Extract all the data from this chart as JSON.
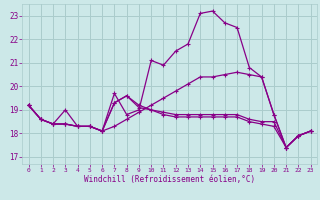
{
  "background_color": "#cce8e8",
  "grid_color": "#aacccc",
  "line_color": "#880088",
  "xlabel": "Windchill (Refroidissement éolien,°C)",
  "xlim": [
    -0.5,
    23.5
  ],
  "ylim": [
    16.7,
    23.5
  ],
  "yticks": [
    17,
    18,
    19,
    20,
    21,
    22,
    23
  ],
  "xticks": [
    0,
    1,
    2,
    3,
    4,
    5,
    6,
    7,
    8,
    9,
    10,
    11,
    12,
    13,
    14,
    15,
    16,
    17,
    18,
    19,
    20,
    21,
    22,
    23
  ],
  "series": [
    [
      19.2,
      18.6,
      18.4,
      19.0,
      18.3,
      18.3,
      18.1,
      19.7,
      18.8,
      19.0,
      21.1,
      20.9,
      21.5,
      21.8,
      23.1,
      23.2,
      22.7,
      22.5,
      20.8,
      20.4,
      18.8,
      17.4,
      17.9,
      18.1
    ],
    [
      19.2,
      18.6,
      18.4,
      18.4,
      18.3,
      18.3,
      18.1,
      18.3,
      18.6,
      18.9,
      19.2,
      19.5,
      19.8,
      20.1,
      20.4,
      20.4,
      20.5,
      20.6,
      20.5,
      20.4,
      18.8,
      17.4,
      17.9,
      18.1
    ],
    [
      19.2,
      18.6,
      18.4,
      18.4,
      18.3,
      18.3,
      18.1,
      19.3,
      19.6,
      19.2,
      19.0,
      18.8,
      18.7,
      18.7,
      18.7,
      18.7,
      18.7,
      18.7,
      18.5,
      18.4,
      18.3,
      17.4,
      17.9,
      18.1
    ],
    [
      19.2,
      18.6,
      18.4,
      18.4,
      18.3,
      18.3,
      18.1,
      19.3,
      19.6,
      19.1,
      19.0,
      18.9,
      18.8,
      18.8,
      18.8,
      18.8,
      18.8,
      18.8,
      18.6,
      18.5,
      18.5,
      17.4,
      17.9,
      18.1
    ]
  ]
}
